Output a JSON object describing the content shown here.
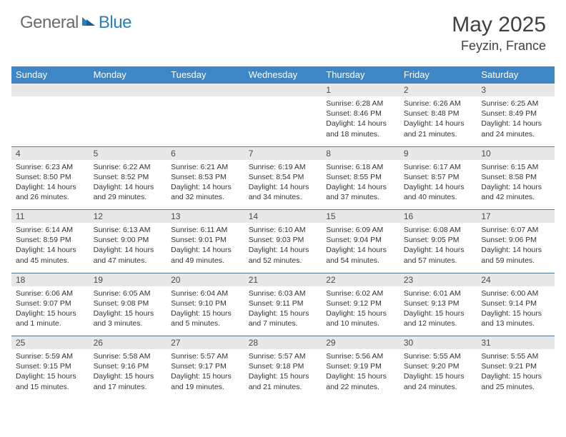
{
  "logo": {
    "general": "General",
    "blue": "Blue"
  },
  "title": "May 2025",
  "location": "Feyzin, France",
  "colors": {
    "header_bg": "#3d87c7",
    "header_text": "#ffffff",
    "daynum_bg": "#e8e8e8",
    "row_border": "#5a7a99",
    "logo_gray": "#6b6b6b",
    "logo_blue": "#2a7fbf"
  },
  "weekdays": [
    "Sunday",
    "Monday",
    "Tuesday",
    "Wednesday",
    "Thursday",
    "Friday",
    "Saturday"
  ],
  "weeks": [
    {
      "nums": [
        "",
        "",
        "",
        "",
        "1",
        "2",
        "3"
      ],
      "cells": [
        {},
        {},
        {},
        {},
        {
          "sunrise": "Sunrise: 6:28 AM",
          "sunset": "Sunset: 8:46 PM",
          "day1": "Daylight: 14 hours",
          "day2": "and 18 minutes."
        },
        {
          "sunrise": "Sunrise: 6:26 AM",
          "sunset": "Sunset: 8:48 PM",
          "day1": "Daylight: 14 hours",
          "day2": "and 21 minutes."
        },
        {
          "sunrise": "Sunrise: 6:25 AM",
          "sunset": "Sunset: 8:49 PM",
          "day1": "Daylight: 14 hours",
          "day2": "and 24 minutes."
        }
      ]
    },
    {
      "nums": [
        "4",
        "5",
        "6",
        "7",
        "8",
        "9",
        "10"
      ],
      "cells": [
        {
          "sunrise": "Sunrise: 6:23 AM",
          "sunset": "Sunset: 8:50 PM",
          "day1": "Daylight: 14 hours",
          "day2": "and 26 minutes."
        },
        {
          "sunrise": "Sunrise: 6:22 AM",
          "sunset": "Sunset: 8:52 PM",
          "day1": "Daylight: 14 hours",
          "day2": "and 29 minutes."
        },
        {
          "sunrise": "Sunrise: 6:21 AM",
          "sunset": "Sunset: 8:53 PM",
          "day1": "Daylight: 14 hours",
          "day2": "and 32 minutes."
        },
        {
          "sunrise": "Sunrise: 6:19 AM",
          "sunset": "Sunset: 8:54 PM",
          "day1": "Daylight: 14 hours",
          "day2": "and 34 minutes."
        },
        {
          "sunrise": "Sunrise: 6:18 AM",
          "sunset": "Sunset: 8:55 PM",
          "day1": "Daylight: 14 hours",
          "day2": "and 37 minutes."
        },
        {
          "sunrise": "Sunrise: 6:17 AM",
          "sunset": "Sunset: 8:57 PM",
          "day1": "Daylight: 14 hours",
          "day2": "and 40 minutes."
        },
        {
          "sunrise": "Sunrise: 6:15 AM",
          "sunset": "Sunset: 8:58 PM",
          "day1": "Daylight: 14 hours",
          "day2": "and 42 minutes."
        }
      ]
    },
    {
      "nums": [
        "11",
        "12",
        "13",
        "14",
        "15",
        "16",
        "17"
      ],
      "cells": [
        {
          "sunrise": "Sunrise: 6:14 AM",
          "sunset": "Sunset: 8:59 PM",
          "day1": "Daylight: 14 hours",
          "day2": "and 45 minutes."
        },
        {
          "sunrise": "Sunrise: 6:13 AM",
          "sunset": "Sunset: 9:00 PM",
          "day1": "Daylight: 14 hours",
          "day2": "and 47 minutes."
        },
        {
          "sunrise": "Sunrise: 6:11 AM",
          "sunset": "Sunset: 9:01 PM",
          "day1": "Daylight: 14 hours",
          "day2": "and 49 minutes."
        },
        {
          "sunrise": "Sunrise: 6:10 AM",
          "sunset": "Sunset: 9:03 PM",
          "day1": "Daylight: 14 hours",
          "day2": "and 52 minutes."
        },
        {
          "sunrise": "Sunrise: 6:09 AM",
          "sunset": "Sunset: 9:04 PM",
          "day1": "Daylight: 14 hours",
          "day2": "and 54 minutes."
        },
        {
          "sunrise": "Sunrise: 6:08 AM",
          "sunset": "Sunset: 9:05 PM",
          "day1": "Daylight: 14 hours",
          "day2": "and 57 minutes."
        },
        {
          "sunrise": "Sunrise: 6:07 AM",
          "sunset": "Sunset: 9:06 PM",
          "day1": "Daylight: 14 hours",
          "day2": "and 59 minutes."
        }
      ]
    },
    {
      "nums": [
        "18",
        "19",
        "20",
        "21",
        "22",
        "23",
        "24"
      ],
      "cells": [
        {
          "sunrise": "Sunrise: 6:06 AM",
          "sunset": "Sunset: 9:07 PM",
          "day1": "Daylight: 15 hours",
          "day2": "and 1 minute."
        },
        {
          "sunrise": "Sunrise: 6:05 AM",
          "sunset": "Sunset: 9:08 PM",
          "day1": "Daylight: 15 hours",
          "day2": "and 3 minutes."
        },
        {
          "sunrise": "Sunrise: 6:04 AM",
          "sunset": "Sunset: 9:10 PM",
          "day1": "Daylight: 15 hours",
          "day2": "and 5 minutes."
        },
        {
          "sunrise": "Sunrise: 6:03 AM",
          "sunset": "Sunset: 9:11 PM",
          "day1": "Daylight: 15 hours",
          "day2": "and 7 minutes."
        },
        {
          "sunrise": "Sunrise: 6:02 AM",
          "sunset": "Sunset: 9:12 PM",
          "day1": "Daylight: 15 hours",
          "day2": "and 10 minutes."
        },
        {
          "sunrise": "Sunrise: 6:01 AM",
          "sunset": "Sunset: 9:13 PM",
          "day1": "Daylight: 15 hours",
          "day2": "and 12 minutes."
        },
        {
          "sunrise": "Sunrise: 6:00 AM",
          "sunset": "Sunset: 9:14 PM",
          "day1": "Daylight: 15 hours",
          "day2": "and 13 minutes."
        }
      ]
    },
    {
      "nums": [
        "25",
        "26",
        "27",
        "28",
        "29",
        "30",
        "31"
      ],
      "cells": [
        {
          "sunrise": "Sunrise: 5:59 AM",
          "sunset": "Sunset: 9:15 PM",
          "day1": "Daylight: 15 hours",
          "day2": "and 15 minutes."
        },
        {
          "sunrise": "Sunrise: 5:58 AM",
          "sunset": "Sunset: 9:16 PM",
          "day1": "Daylight: 15 hours",
          "day2": "and 17 minutes."
        },
        {
          "sunrise": "Sunrise: 5:57 AM",
          "sunset": "Sunset: 9:17 PM",
          "day1": "Daylight: 15 hours",
          "day2": "and 19 minutes."
        },
        {
          "sunrise": "Sunrise: 5:57 AM",
          "sunset": "Sunset: 9:18 PM",
          "day1": "Daylight: 15 hours",
          "day2": "and 21 minutes."
        },
        {
          "sunrise": "Sunrise: 5:56 AM",
          "sunset": "Sunset: 9:19 PM",
          "day1": "Daylight: 15 hours",
          "day2": "and 22 minutes."
        },
        {
          "sunrise": "Sunrise: 5:55 AM",
          "sunset": "Sunset: 9:20 PM",
          "day1": "Daylight: 15 hours",
          "day2": "and 24 minutes."
        },
        {
          "sunrise": "Sunrise: 5:55 AM",
          "sunset": "Sunset: 9:21 PM",
          "day1": "Daylight: 15 hours",
          "day2": "and 25 minutes."
        }
      ]
    }
  ]
}
